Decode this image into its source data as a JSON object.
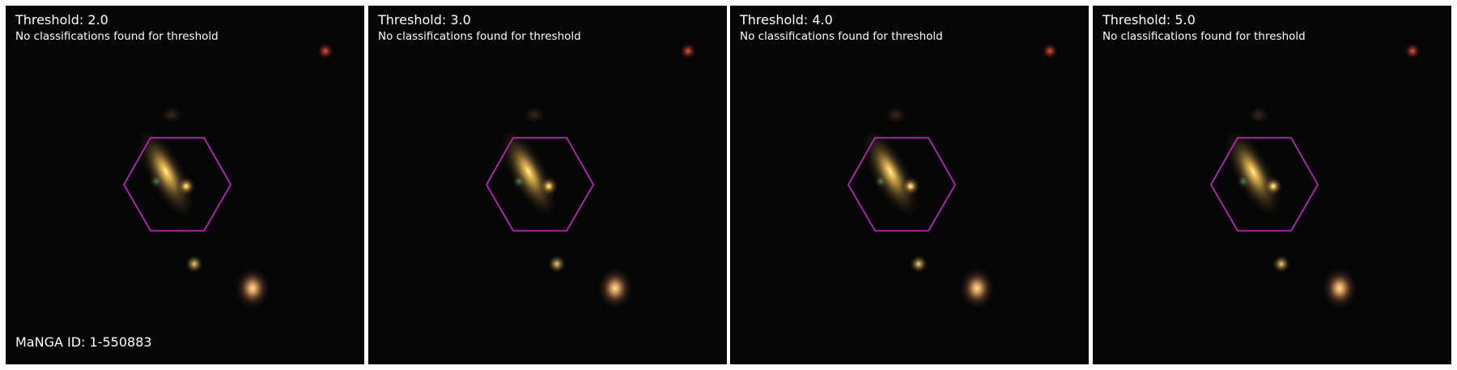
{
  "figure": {
    "panels": [
      {
        "threshold_label": "Threshold: 2.0",
        "status": "No classifications found for threshold"
      },
      {
        "threshold_label": "Threshold: 3.0",
        "status": "No classifications found for threshold"
      },
      {
        "threshold_label": "Threshold: 4.0",
        "status": "No classifications found for threshold"
      },
      {
        "threshold_label": "Threshold: 5.0",
        "status": "No classifications found for threshold"
      }
    ],
    "manga_id_label": "MaNGA ID: 1-550883"
  },
  "colors": {
    "background": "#050505",
    "hexagon": "#d21ed2",
    "text": "#ffffff"
  }
}
